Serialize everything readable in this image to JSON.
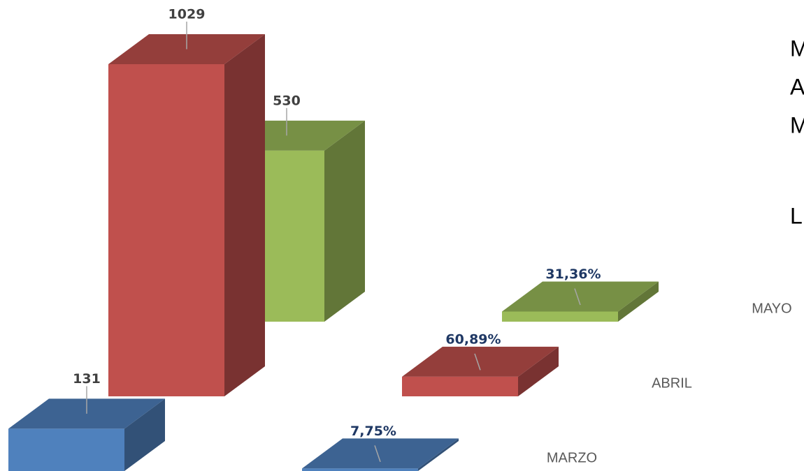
{
  "chart_data": {
    "type": "bar3d",
    "categories": [
      "MARZO",
      "ABRIL",
      "MAYO"
    ],
    "colors": [
      "#4f81bd",
      "#c0504d",
      "#9bbb59"
    ],
    "series": [
      {
        "values": [
          131,
          1029,
          530
        ]
      },
      {
        "values": [
          7.75,
          60.89,
          31.36
        ],
        "value_labels": [
          "7,75%",
          "60,89%",
          "31,36%"
        ]
      }
    ],
    "side_text": [
      "M",
      "A",
      "M",
      "L"
    ]
  }
}
